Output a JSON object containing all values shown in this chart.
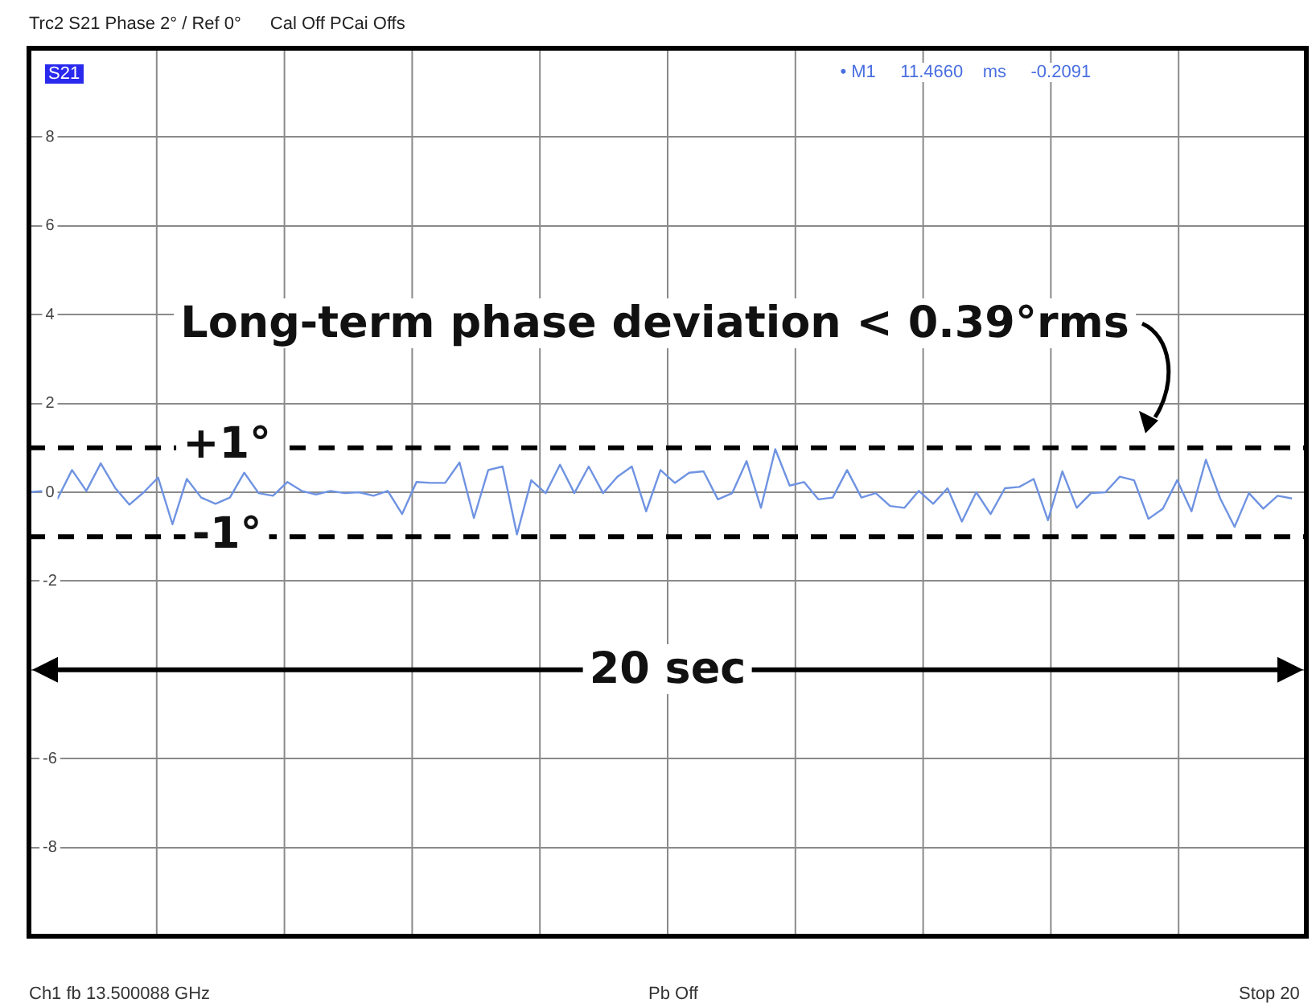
{
  "chart_data": {
    "type": "line",
    "title": "Trc2 S21 Phase 2° / Ref 0°",
    "subtitle": "Cal Off PCai Offs",
    "categories": [
      null,
      null,
      null,
      null,
      null,
      null,
      null,
      null,
      null,
      null,
      null,
      null,
      null,
      null,
      null,
      null,
      null,
      null,
      null,
      null,
      null,
      null,
      null,
      null,
      null,
      null,
      null,
      null,
      null,
      null,
      null,
      null,
      null,
      null,
      null,
      null,
      null,
      null,
      null,
      null,
      null,
      null,
      null,
      null,
      null,
      null,
      null,
      null,
      null,
      null,
      null,
      null,
      null,
      null,
      null,
      null,
      null,
      null,
      null,
      null,
      null,
      null,
      null,
      null,
      null,
      null,
      null,
      null,
      null,
      null,
      null,
      null,
      null,
      null,
      null,
      null,
      null,
      null,
      null,
      null,
      null,
      null,
      null,
      null,
      null,
      null,
      null,
      null,
      null
    ],
    "series": [
      {
        "color": "#6f93e2",
        "values": [
          0,
          0.03,
          -0.14,
          0.5,
          0.03,
          0.65,
          0.1,
          -0.28,
          0,
          0.33,
          -0.72,
          0.3,
          -0.12,
          -0.26,
          -0.12,
          0.44,
          -0.02,
          -0.08,
          0.23,
          0.03,
          -0.05,
          0.03,
          -0.02,
          0,
          -0.08,
          0.03,
          -0.49,
          0.23,
          0.21,
          0.21,
          0.67,
          -0.58,
          0.5,
          0.58,
          -0.95,
          0.27,
          -0.02,
          0.62,
          -0.02,
          0.58,
          -0.02,
          0.35,
          0.58,
          -0.43,
          0.5,
          0.21,
          0.44,
          0.47,
          -0.16,
          -0.02,
          0.7,
          -0.35,
          0.97,
          0.15,
          0.23,
          -0.16,
          -0.12,
          0.5,
          -0.12,
          -0.02,
          -0.31,
          -0.35,
          0.03,
          -0.26,
          0.09,
          -0.66,
          0,
          -0.49,
          0.09,
          0.12,
          0.3,
          -0.63,
          0.47,
          -0.35,
          -0.02,
          0,
          0.35,
          0.27,
          -0.6,
          -0.37,
          0.27,
          -0.43,
          0.73,
          -0.14,
          -0.78,
          -0.02,
          -0.37,
          -0.08,
          -0.14
        ]
      }
    ],
    "ylim": [
      -10,
      10
    ],
    "yticks": [
      {
        "value": 10,
        "label": null
      },
      8,
      6,
      4,
      2,
      0,
      -2,
      {
        "value": -4,
        "label": null
      },
      -6,
      -8,
      {
        "value": -10,
        "label": null
      }
    ],
    "tick_labels": "y",
    "grid": true,
    "legend": false,
    "marker": "none",
    "line_style": "solid",
    "ref_lines": [
      {
        "axis": "y",
        "value": 1,
        "label": "+1°",
        "color": "#000000",
        "line_style": "dashed"
      },
      {
        "axis": "y",
        "value": -1,
        "label": "-1°",
        "color": "#000000",
        "line_style": "dashed"
      }
    ],
    "annotations": [
      "Long-term phase deviation < 0.39°rms",
      "20 sec",
      "S21",
      "• M1     11.4660    ms     -0.2091",
      "Ch1    fb  13.500088 GHz",
      "Pb  Off",
      "Stop  20"
    ]
  }
}
